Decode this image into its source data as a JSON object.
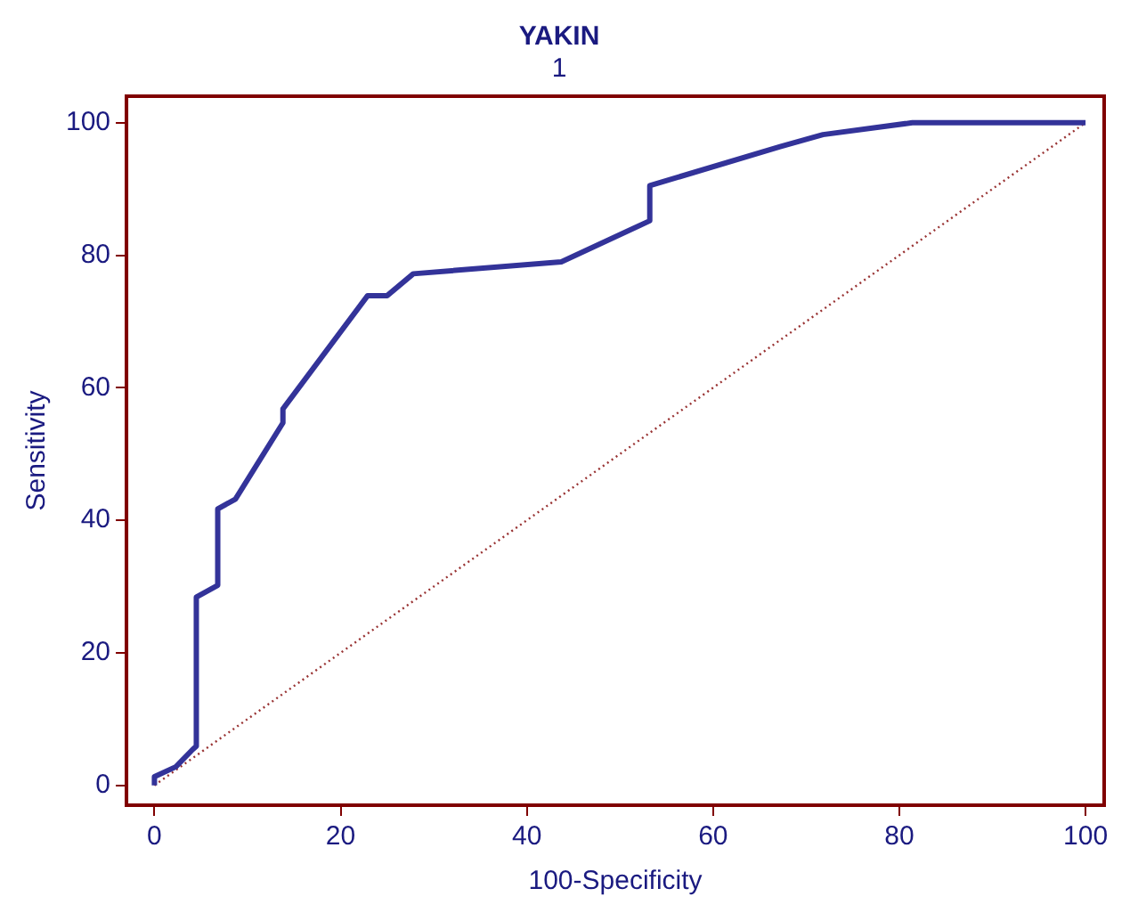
{
  "chart_data": {
    "type": "line",
    "title": "YAKIN",
    "subtitle": "1",
    "xlabel": "100-Specificity",
    "ylabel": "Sensitivity",
    "xlim": [
      -3,
      102
    ],
    "ylim": [
      -3,
      104
    ],
    "xticks": [
      0,
      20,
      40,
      60,
      80,
      100
    ],
    "yticks": [
      0,
      20,
      40,
      60,
      80,
      100
    ],
    "grid": false,
    "legend": false,
    "marker": "none",
    "series": [
      {
        "color": "#333399",
        "line_style": "solid",
        "x": [
          0,
          0,
          2.3,
          4.1,
          4.5,
          4.5,
          6.8,
          6.8,
          8.7,
          13.8,
          13.8,
          22.9,
          25,
          27.8,
          43.7,
          53.2,
          53.2,
          67.2,
          71.8,
          81.4,
          100
        ],
        "values": [
          0,
          1.3,
          2.8,
          5.4,
          5.9,
          28.4,
          30.2,
          41.7,
          43.2,
          54.7,
          56.8,
          73.9,
          73.9,
          77.2,
          79,
          85.2,
          90.5,
          96.4,
          98.2,
          100,
          100
        ]
      },
      {
        "color": "#993333",
        "line_style": "dotted",
        "x": [
          0,
          100
        ],
        "values": [
          0,
          100
        ]
      }
    ]
  }
}
